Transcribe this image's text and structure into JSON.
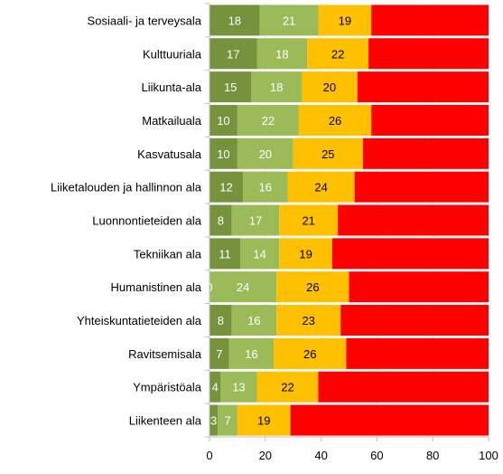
{
  "chart_data": {
    "type": "bar",
    "orientation": "horizontal",
    "stacked": true,
    "categories": [
      "Sosiaali- ja terveysala",
      "Kulttuuriala",
      "Liikunta-ala",
      "Matkailuala",
      "Kasvatusala",
      "Liiketalouden ja hallinnon ala",
      "Luonnontieteiden ala",
      "Tekniikan ala",
      "Humanistinen ala",
      "Yhteiskuntatieteiden ala",
      "Ravitsemisala",
      "Ympäristöala",
      "Liikenteen ala"
    ],
    "series": [
      {
        "color": "#76923c",
        "label_color": "#ffffff",
        "show_labels": true,
        "values": [
          18,
          17,
          15,
          10,
          10,
          12,
          8,
          11,
          0,
          8,
          7,
          4,
          3
        ]
      },
      {
        "color": "#9bbb59",
        "label_color": "#ffffff",
        "show_labels": true,
        "values": [
          21,
          18,
          18,
          22,
          20,
          16,
          17,
          14,
          24,
          16,
          16,
          13,
          7
        ]
      },
      {
        "color": "#ffc000",
        "label_color": "#000000",
        "show_labels": true,
        "values": [
          19,
          22,
          20,
          26,
          25,
          24,
          21,
          19,
          26,
          23,
          26,
          22,
          19
        ]
      },
      {
        "color": "#ff0000",
        "label_color": "#000000",
        "show_labels": false,
        "values": [
          42,
          43,
          47,
          42,
          45,
          48,
          54,
          56,
          50,
          53,
          51,
          61,
          71
        ]
      }
    ],
    "xlim": [
      0,
      100
    ],
    "xticks": [
      0,
      20,
      40,
      60,
      80,
      100
    ],
    "title": "",
    "xlabel": "",
    "ylabel": "",
    "grid": true,
    "legend": "none"
  }
}
